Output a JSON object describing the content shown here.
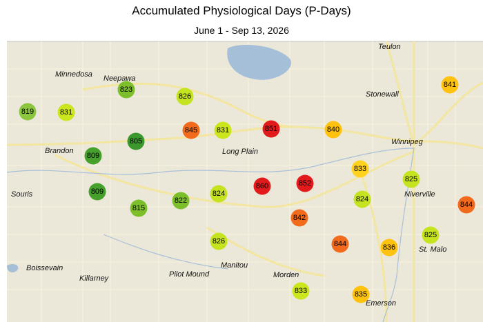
{
  "header": {
    "title": "Accumulated Physiological Days (P-Days)",
    "subtitle": "June 1 - Sep 13, 2026"
  },
  "places": [
    "Teulon",
    "Minnedosa",
    "Neepawa",
    "Stonewall",
    "Winnipeg",
    "Brandon",
    "Long Plain",
    "Souris",
    "Niverville",
    "St. Malo",
    "Boissevain",
    "Killarney",
    "Pilot Mound",
    "Manitou",
    "Morden",
    "Emerson"
  ],
  "stations": [
    {
      "value": 819,
      "color": "#8cc63f"
    },
    {
      "value": 831,
      "color": "#cce51c"
    },
    {
      "value": 823,
      "color": "#7cbf2a"
    },
    {
      "value": 826,
      "color": "#c5e31f"
    },
    {
      "value": 845,
      "color": "#f26a1b"
    },
    {
      "value": 831,
      "color": "#cce51c"
    },
    {
      "value": 851,
      "color": "#e31a1c"
    },
    {
      "value": 840,
      "color": "#ffc20e"
    },
    {
      "value": 841,
      "color": "#ffc20e"
    },
    {
      "value": 805,
      "color": "#3b982c"
    },
    {
      "value": 809,
      "color": "#45a02c"
    },
    {
      "value": 833,
      "color": "#ffd21e"
    },
    {
      "value": 825,
      "color": "#c5e31f"
    },
    {
      "value": 809,
      "color": "#45a02c"
    },
    {
      "value": 815,
      "color": "#7cbf2a"
    },
    {
      "value": 822,
      "color": "#7cbf2a"
    },
    {
      "value": 824,
      "color": "#c5e31f"
    },
    {
      "value": 860,
      "color": "#e31a1c"
    },
    {
      "value": 852,
      "color": "#e31a1c"
    },
    {
      "value": 842,
      "color": "#f26a1b"
    },
    {
      "value": 824,
      "color": "#c5e31f"
    },
    {
      "value": 844,
      "color": "#f26a1b"
    },
    {
      "value": 826,
      "color": "#c5e31f"
    },
    {
      "value": 844,
      "color": "#f26a1b"
    },
    {
      "value": 836,
      "color": "#ffc20e"
    },
    {
      "value": 825,
      "color": "#c5e31f"
    },
    {
      "value": 833,
      "color": "#cce51c"
    },
    {
      "value": 835,
      "color": "#ffc20e"
    }
  ]
}
